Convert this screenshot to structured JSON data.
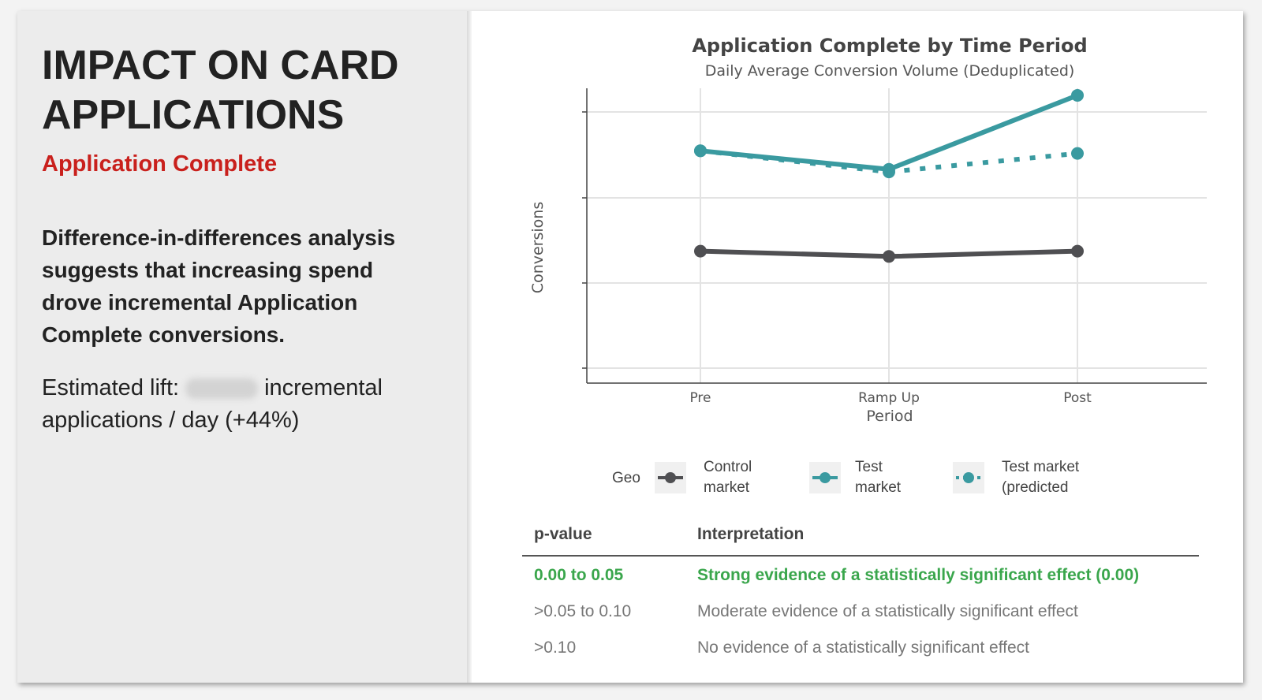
{
  "left_panel": {
    "title": "IMPACT ON CARD APPLICATIONS",
    "subtitle": "Application Complete",
    "body": "Difference-in-differences analysis suggests that increasing spend drove incremental Application Complete conversions.",
    "lift_prefix": "Estimated lift:",
    "lift_suffix": "incremental applications / day (+44%)"
  },
  "colors": {
    "accent_red": "#c9201c",
    "control": "#4f4f52",
    "test": "#3a9aa0",
    "significant": "#3aa64c"
  },
  "chart_data": {
    "type": "line",
    "title": "Application Complete by Time Period",
    "subtitle": "Daily Average Conversion Volume (Deduplicated)",
    "xlabel": "Period",
    "ylabel": "Conversions",
    "categories": [
      "Pre",
      "Ramp Up",
      "Post"
    ],
    "y_ticks_hidden": true,
    "ylim": [
      0,
      1
    ],
    "grid": true,
    "series": [
      {
        "name": "Control market",
        "style": "solid",
        "color": "#4f4f52",
        "values": [
          0.44,
          0.42,
          0.44
        ]
      },
      {
        "name": "Test market",
        "style": "solid",
        "color": "#3a9aa0",
        "values": [
          0.82,
          0.75,
          1.03
        ]
      },
      {
        "name": "Test market (predicted",
        "style": "dotted",
        "color": "#3a9aa0",
        "values": [
          0.82,
          0.74,
          0.81
        ]
      }
    ],
    "legend": {
      "title": "Geo",
      "placement": "bottom"
    }
  },
  "legend_labels": [
    {
      "line1": "Control",
      "line2": "market"
    },
    {
      "line1": "Test",
      "line2": "market"
    },
    {
      "line1": "Test market",
      "line2": "(predicted"
    }
  ],
  "pvalue_table": {
    "headers": [
      "p-value",
      "Interpretation"
    ],
    "rows": [
      {
        "range": "0.00 to 0.05",
        "text": "Strong evidence of a statistically significant effect (0.00)",
        "highlight": true
      },
      {
        "range": ">0.05 to 0.10",
        "text": "Moderate evidence of a statistically significant effect",
        "highlight": false
      },
      {
        "range": ">0.10",
        "text": "No evidence of a statistically significant effect",
        "highlight": false
      }
    ]
  }
}
